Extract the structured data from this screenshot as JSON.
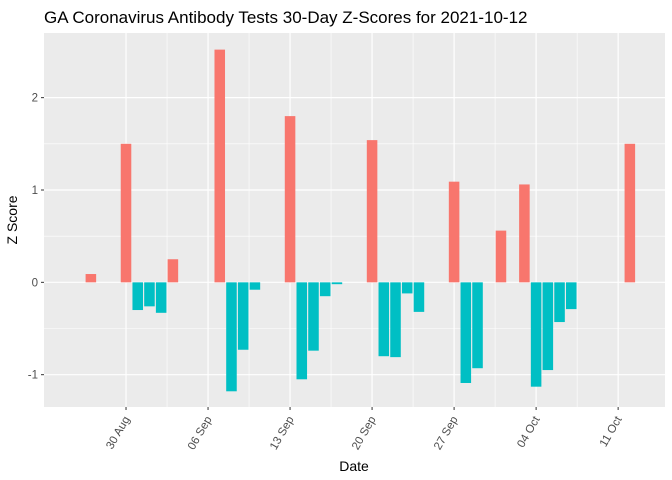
{
  "chart_data": {
    "type": "bar",
    "title": "GA Coronavirus Antibody Tests 30-Day Z-Scores for 2021-10-12",
    "xlabel": "Date",
    "ylabel": "Z Score",
    "ylim": [
      -1.35,
      2.7
    ],
    "y_ticks": [
      -1,
      0,
      1,
      2
    ],
    "x_ticks": [
      {
        "label": "30 Aug",
        "date": "2021-08-30"
      },
      {
        "label": "06 Sep",
        "date": "2021-09-06"
      },
      {
        "label": "13 Sep",
        "date": "2021-09-13"
      },
      {
        "label": "20 Sep",
        "date": "2021-09-20"
      },
      {
        "label": "27 Sep",
        "date": "2021-09-27"
      },
      {
        "label": "04 Oct",
        "date": "2021-10-04"
      },
      {
        "label": "11 Oct",
        "date": "2021-10-11"
      }
    ],
    "x_range": [
      "2021-08-23",
      "2021-10-15"
    ],
    "grid": true,
    "legend": "none",
    "colors": {
      "positive": "#F8766D",
      "negative": "#00BFC4",
      "panel": "#EBEBEB",
      "grid": "#FFFFFF"
    },
    "data": [
      {
        "date": "2021-08-27",
        "value": 0.09
      },
      {
        "date": "2021-08-30",
        "value": 1.5
      },
      {
        "date": "2021-08-31",
        "value": -0.3
      },
      {
        "date": "2021-09-01",
        "value": -0.26
      },
      {
        "date": "2021-09-02",
        "value": -0.33
      },
      {
        "date": "2021-09-03",
        "value": 0.25
      },
      {
        "date": "2021-09-07",
        "value": 2.52
      },
      {
        "date": "2021-09-08",
        "value": -1.18
      },
      {
        "date": "2021-09-09",
        "value": -0.73
      },
      {
        "date": "2021-09-10",
        "value": -0.08
      },
      {
        "date": "2021-09-13",
        "value": 1.8
      },
      {
        "date": "2021-09-14",
        "value": -1.05
      },
      {
        "date": "2021-09-15",
        "value": -0.74
      },
      {
        "date": "2021-09-16",
        "value": -0.15
      },
      {
        "date": "2021-09-17",
        "value": -0.02
      },
      {
        "date": "2021-09-20",
        "value": 1.54
      },
      {
        "date": "2021-09-21",
        "value": -0.8
      },
      {
        "date": "2021-09-22",
        "value": -0.81
      },
      {
        "date": "2021-09-23",
        "value": -0.12
      },
      {
        "date": "2021-09-24",
        "value": -0.32
      },
      {
        "date": "2021-09-27",
        "value": 1.09
      },
      {
        "date": "2021-09-28",
        "value": -1.09
      },
      {
        "date": "2021-09-29",
        "value": -0.93
      },
      {
        "date": "2021-10-01",
        "value": 0.56
      },
      {
        "date": "2021-10-03",
        "value": 1.06
      },
      {
        "date": "2021-10-04",
        "value": -1.13
      },
      {
        "date": "2021-10-05",
        "value": -0.95
      },
      {
        "date": "2021-10-06",
        "value": -0.43
      },
      {
        "date": "2021-10-07",
        "value": -0.29
      },
      {
        "date": "2021-10-12",
        "value": 1.5
      }
    ]
  }
}
